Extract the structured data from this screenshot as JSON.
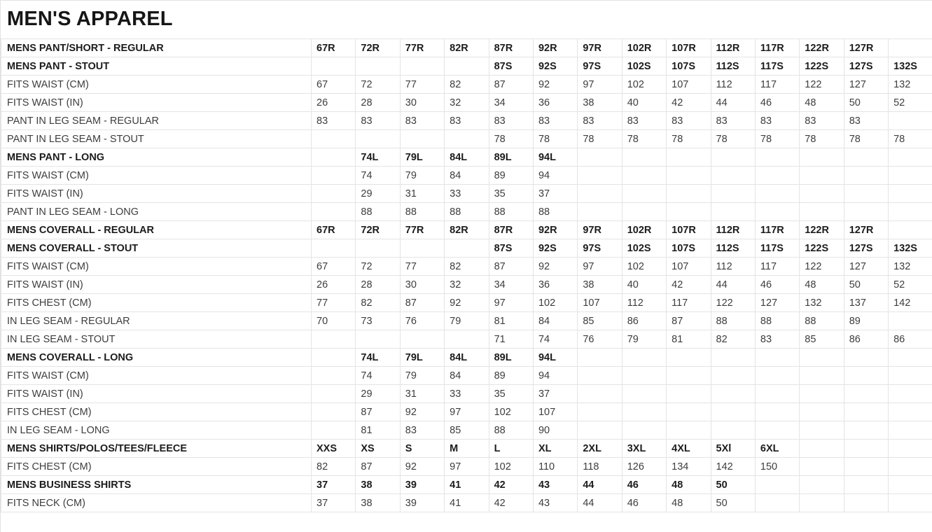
{
  "page_title": "MEN'S APPAREL",
  "colors": {
    "background": "#ffffff",
    "grid_border": "#e4e4e4",
    "section_text": "#1c1c1c",
    "value_text": "#3d3d3d"
  },
  "table": {
    "data_columns": 14,
    "rows": [
      {
        "label": "MENS PANT/SHORT - REGULAR",
        "bold": true,
        "values": [
          "67R",
          "72R",
          "77R",
          "82R",
          "87R",
          "92R",
          "97R",
          "102R",
          "107R",
          "112R",
          "117R",
          "122R",
          "127R",
          ""
        ]
      },
      {
        "label": "MENS PANT - STOUT",
        "bold": true,
        "values": [
          "",
          "",
          "",
          "",
          "87S",
          "92S",
          "97S",
          "102S",
          "107S",
          "112S",
          "117S",
          "122S",
          "127S",
          "132S"
        ]
      },
      {
        "label": "FITS WAIST (CM)",
        "bold": false,
        "values": [
          "67",
          "72",
          "77",
          "82",
          "87",
          "92",
          "97",
          "102",
          "107",
          "112",
          "117",
          "122",
          "127",
          "132"
        ]
      },
      {
        "label": "FITS WAIST (IN)",
        "bold": false,
        "values": [
          "26",
          "28",
          "30",
          "32",
          "34",
          "36",
          "38",
          "40",
          "42",
          "44",
          "46",
          "48",
          "50",
          "52"
        ]
      },
      {
        "label": "PANT IN LEG SEAM - REGULAR",
        "bold": false,
        "values": [
          "83",
          "83",
          "83",
          "83",
          "83",
          "83",
          "83",
          "83",
          "83",
          "83",
          "83",
          "83",
          "83",
          ""
        ]
      },
      {
        "label": "PANT IN LEG SEAM - STOUT",
        "bold": false,
        "values": [
          "",
          "",
          "",
          "",
          "78",
          "78",
          "78",
          "78",
          "78",
          "78",
          "78",
          "78",
          "78",
          "78"
        ]
      },
      {
        "label": "MENS PANT - LONG",
        "bold": true,
        "values": [
          "",
          "74L",
          "79L",
          "84L",
          "89L",
          "94L",
          "",
          "",
          "",
          "",
          "",
          "",
          "",
          ""
        ]
      },
      {
        "label": "FITS WAIST (CM)",
        "bold": false,
        "values": [
          "",
          "74",
          "79",
          "84",
          "89",
          "94",
          "",
          "",
          "",
          "",
          "",
          "",
          "",
          ""
        ]
      },
      {
        "label": "FITS WAIST (IN)",
        "bold": false,
        "values": [
          "",
          "29",
          "31",
          "33",
          "35",
          "37",
          "",
          "",
          "",
          "",
          "",
          "",
          "",
          ""
        ]
      },
      {
        "label": "PANT IN LEG SEAM - LONG",
        "bold": false,
        "values": [
          "",
          "88",
          "88",
          "88",
          "88",
          "88",
          "",
          "",
          "",
          "",
          "",
          "",
          "",
          ""
        ]
      },
      {
        "label": "MENS COVERALL - REGULAR",
        "bold": true,
        "values": [
          "67R",
          "72R",
          "77R",
          "82R",
          "87R",
          "92R",
          "97R",
          "102R",
          "107R",
          "112R",
          "117R",
          "122R",
          "127R",
          ""
        ]
      },
      {
        "label": "MENS COVERALL - STOUT",
        "bold": true,
        "values": [
          "",
          "",
          "",
          "",
          "87S",
          "92S",
          "97S",
          "102S",
          "107S",
          "112S",
          "117S",
          "122S",
          "127S",
          "132S"
        ]
      },
      {
        "label": "FITS WAIST (CM)",
        "bold": false,
        "values": [
          "67",
          "72",
          "77",
          "82",
          "87",
          "92",
          "97",
          "102",
          "107",
          "112",
          "117",
          "122",
          "127",
          "132"
        ]
      },
      {
        "label": "FITS WAIST (IN)",
        "bold": false,
        "values": [
          "26",
          "28",
          "30",
          "32",
          "34",
          "36",
          "38",
          "40",
          "42",
          "44",
          "46",
          "48",
          "50",
          "52"
        ]
      },
      {
        "label": "FITS CHEST (CM)",
        "bold": false,
        "values": [
          "77",
          "82",
          "87",
          "92",
          "97",
          "102",
          "107",
          "112",
          "117",
          "122",
          "127",
          "132",
          "137",
          "142"
        ]
      },
      {
        "label": "IN LEG SEAM - REGULAR",
        "bold": false,
        "values": [
          "70",
          "73",
          "76",
          "79",
          "81",
          "84",
          "85",
          "86",
          "87",
          "88",
          "88",
          "88",
          "89",
          ""
        ]
      },
      {
        "label": "IN LEG SEAM - STOUT",
        "bold": false,
        "values": [
          "",
          "",
          "",
          "",
          "71",
          "74",
          "76",
          "79",
          "81",
          "82",
          "83",
          "85",
          "86",
          "86"
        ]
      },
      {
        "label": "MENS COVERALL - LONG",
        "bold": true,
        "values": [
          "",
          "74L",
          "79L",
          "84L",
          "89L",
          "94L",
          "",
          "",
          "",
          "",
          "",
          "",
          "",
          ""
        ]
      },
      {
        "label": "FITS WAIST (CM)",
        "bold": false,
        "values": [
          "",
          "74",
          "79",
          "84",
          "89",
          "94",
          "",
          "",
          "",
          "",
          "",
          "",
          "",
          ""
        ]
      },
      {
        "label": "FITS WAIST (IN)",
        "bold": false,
        "values": [
          "",
          "29",
          "31",
          "33",
          "35",
          "37",
          "",
          "",
          "",
          "",
          "",
          "",
          "",
          ""
        ]
      },
      {
        "label": "FITS CHEST (CM)",
        "bold": false,
        "values": [
          "",
          "87",
          "92",
          "97",
          "102",
          "107",
          "",
          "",
          "",
          "",
          "",
          "",
          "",
          ""
        ]
      },
      {
        "label": "IN LEG SEAM - LONG",
        "bold": false,
        "values": [
          "",
          "81",
          "83",
          "85",
          "88",
          "90",
          "",
          "",
          "",
          "",
          "",
          "",
          "",
          ""
        ]
      },
      {
        "label": "MENS SHIRTS/POLOS/TEES/FLEECE",
        "bold": true,
        "values": [
          "XXS",
          "XS",
          "S",
          "M",
          "L",
          "XL",
          "2XL",
          "3XL",
          "4XL",
          "5Xl",
          "6XL",
          "",
          "",
          ""
        ]
      },
      {
        "label": "FITS CHEST (CM)",
        "bold": false,
        "values": [
          "82",
          "87",
          "92",
          "97",
          "102",
          "110",
          "118",
          "126",
          "134",
          "142",
          "150",
          "",
          "",
          ""
        ]
      },
      {
        "label": "MENS BUSINESS SHIRTS",
        "bold": true,
        "values": [
          "37",
          "38",
          "39",
          "41",
          "42",
          "43",
          "44",
          "46",
          "48",
          "50",
          "",
          "",
          "",
          ""
        ]
      },
      {
        "label": "FITS NECK (CM)",
        "bold": false,
        "values": [
          "37",
          "38",
          "39",
          "41",
          "42",
          "43",
          "44",
          "46",
          "48",
          "50",
          "",
          "",
          "",
          ""
        ]
      }
    ]
  }
}
